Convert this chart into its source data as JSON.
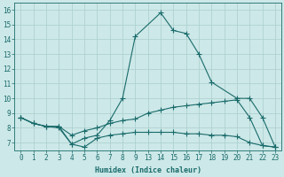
{
  "bg_color": "#cde8e8",
  "grid_color": "#aacece",
  "line_color": "#1a6b6b",
  "line1_x": [
    0,
    1,
    2,
    3,
    4,
    5,
    6,
    7,
    8,
    9,
    14,
    15,
    16,
    17,
    18,
    20,
    21,
    22,
    23
  ],
  "line1_y": [
    8.7,
    8.3,
    8.1,
    8.1,
    6.9,
    7.3,
    7.5,
    8.5,
    10.0,
    14.2,
    15.8,
    14.6,
    14.4,
    13.0,
    11.1,
    10.0,
    10.0,
    8.7,
    6.7
  ],
  "line2_x": [
    0,
    1,
    2,
    3,
    4,
    5,
    6,
    7,
    8,
    9,
    13,
    14,
    15,
    16,
    17,
    18,
    19,
    20,
    21,
    22,
    23
  ],
  "line2_y": [
    8.7,
    8.3,
    8.1,
    8.1,
    7.5,
    7.8,
    8.0,
    8.3,
    8.5,
    8.6,
    9.0,
    9.2,
    9.4,
    9.5,
    9.6,
    9.7,
    9.8,
    9.9,
    8.7,
    6.8,
    6.7
  ],
  "line3_x": [
    0,
    1,
    2,
    3,
    4,
    5,
    6,
    7,
    8,
    9,
    13,
    14,
    15,
    16,
    17,
    18,
    19,
    20,
    21,
    22,
    23
  ],
  "line3_y": [
    8.7,
    8.3,
    8.1,
    8.0,
    6.9,
    6.7,
    7.3,
    7.5,
    7.6,
    7.7,
    7.7,
    7.7,
    7.7,
    7.6,
    7.6,
    7.5,
    7.5,
    7.4,
    7.0,
    6.8,
    6.7
  ],
  "xlabel": "Humidex (Indice chaleur)",
  "ylim": [
    6.5,
    16.5
  ],
  "yticks": [
    7,
    8,
    9,
    10,
    11,
    12,
    13,
    14,
    15,
    16
  ],
  "axis_fontsize": 5.5,
  "xlabel_fontsize": 6.0
}
